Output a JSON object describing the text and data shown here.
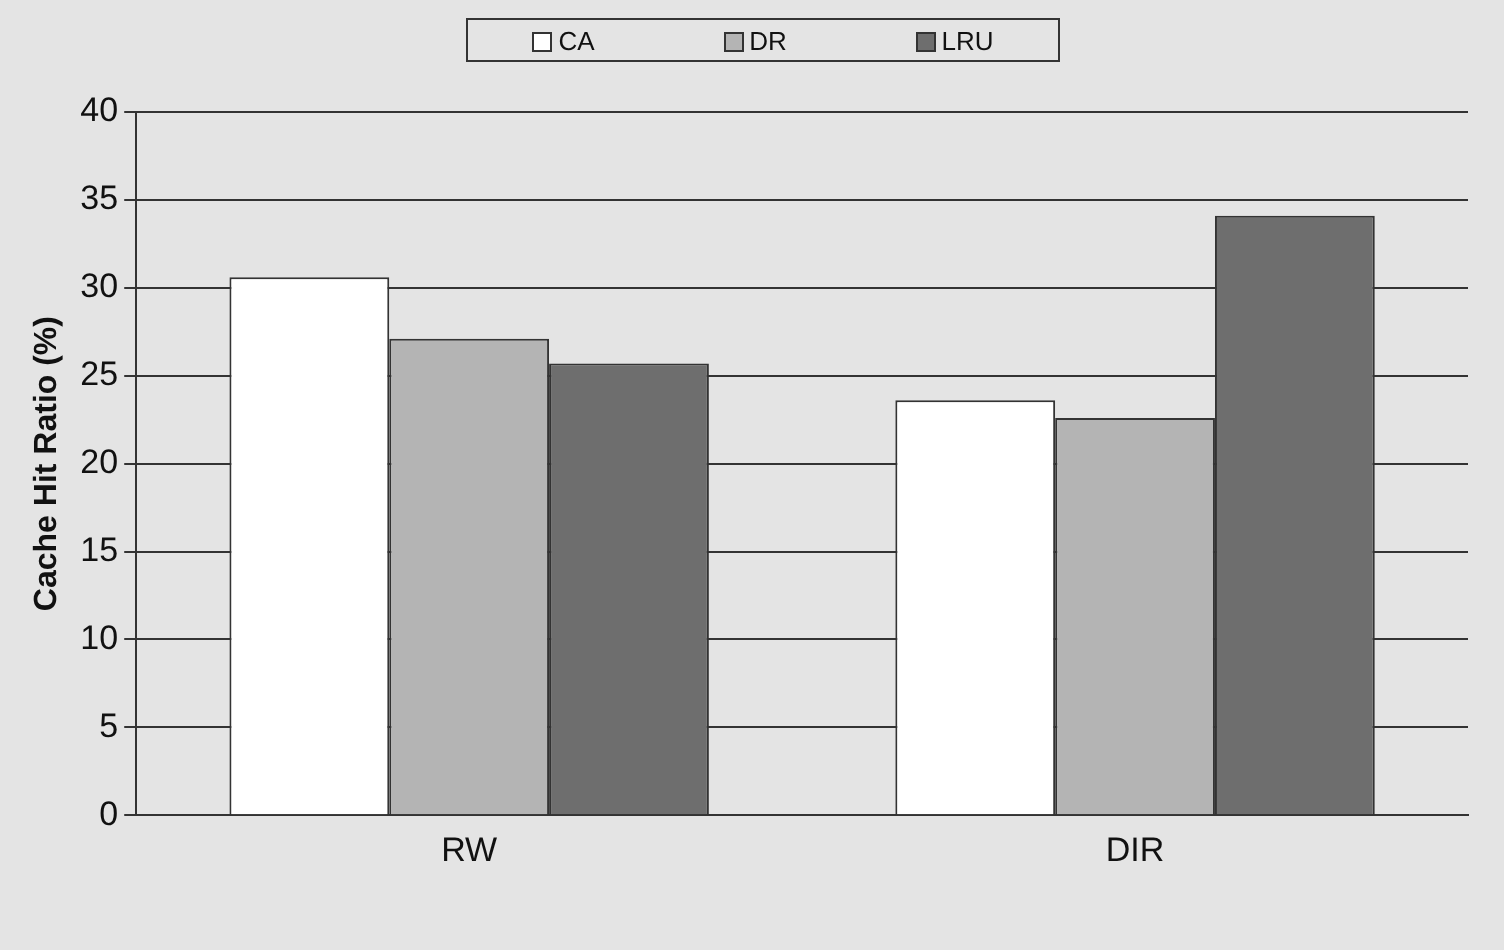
{
  "chart_data": {
    "type": "bar",
    "ylabel": "Cache Hit Ratio (%)",
    "categories": [
      "RW",
      "DIR"
    ],
    "series": [
      {
        "name": "CA",
        "color": "#ffffff",
        "values": [
          30.6,
          23.6
        ]
      },
      {
        "name": "DR",
        "color": "#b4b4b4",
        "values": [
          27.1,
          22.6
        ]
      },
      {
        "name": "LRU",
        "color": "#6e6e6e",
        "values": [
          25.7,
          34.1
        ]
      }
    ],
    "ylim": [
      0,
      40
    ],
    "yticks": [
      0,
      5,
      10,
      15,
      20,
      25,
      30,
      35,
      40
    ],
    "grid": "y",
    "legend": "top"
  }
}
